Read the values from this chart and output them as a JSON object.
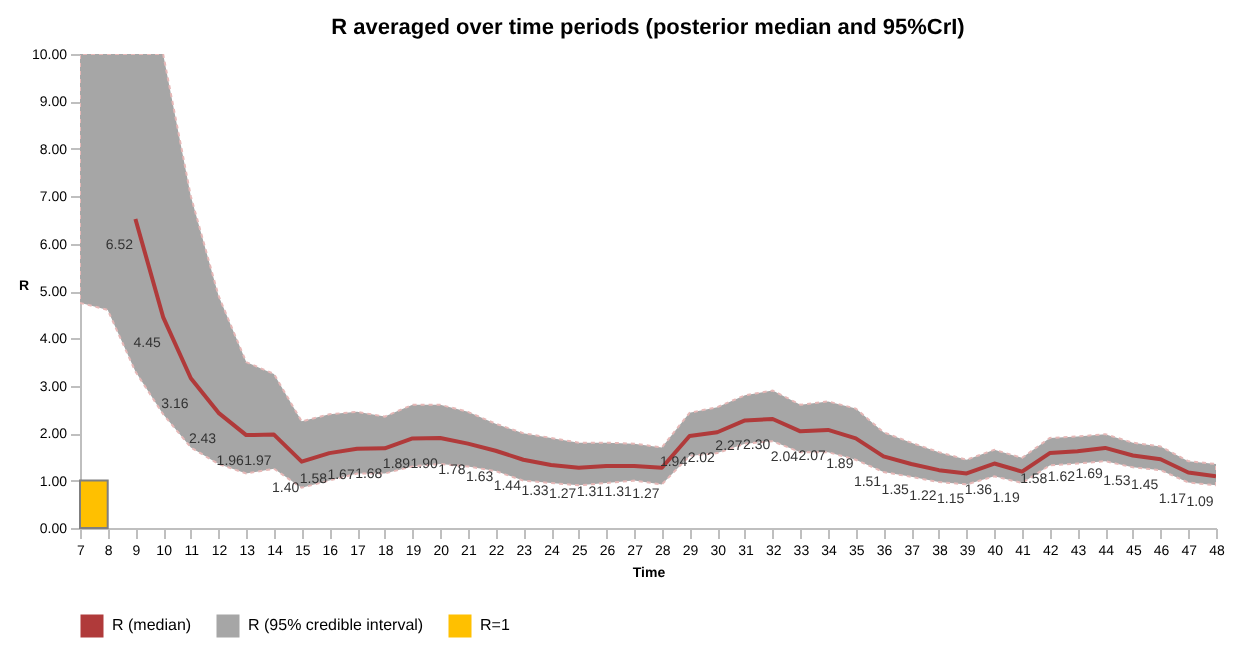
{
  "chart_data": {
    "type": "line",
    "title": "R averaged over time periods (posterior median and 95%CrI)",
    "xlabel": "Time",
    "ylabel": "R",
    "x": [
      7,
      8,
      9,
      10,
      11,
      12,
      13,
      14,
      15,
      16,
      17,
      18,
      19,
      20,
      21,
      22,
      23,
      24,
      25,
      26,
      27,
      28,
      29,
      30,
      31,
      32,
      33,
      34,
      35,
      36,
      37,
      38,
      39,
      40,
      41,
      42,
      43,
      44,
      45,
      46,
      47,
      48
    ],
    "xlim": [
      7,
      48
    ],
    "xticks": [
      7,
      8,
      9,
      10,
      11,
      12,
      13,
      14,
      15,
      16,
      17,
      18,
      19,
      20,
      21,
      22,
      23,
      24,
      25,
      26,
      27,
      28,
      29,
      30,
      31,
      32,
      33,
      34,
      35,
      36,
      37,
      38,
      39,
      40,
      41,
      42,
      43,
      44,
      45,
      46,
      47,
      48
    ],
    "ylim": [
      0,
      10
    ],
    "yticks": [
      {
        "value": 0,
        "label": "0.00"
      },
      {
        "value": 1,
        "label": "1.00"
      },
      {
        "value": 2,
        "label": "2.00"
      },
      {
        "value": 3,
        "label": "3.00"
      },
      {
        "value": 4,
        "label": "4.00"
      },
      {
        "value": 5,
        "label": "5.00"
      },
      {
        "value": 6,
        "label": "6.00"
      },
      {
        "value": 7,
        "label": "7.00"
      },
      {
        "value": 8,
        "label": "8.00"
      },
      {
        "value": 9,
        "label": "9.00"
      },
      {
        "value": 10,
        "label": "10.00"
      }
    ],
    "series": [
      {
        "name": "R (median)",
        "color": "#b03a3a",
        "values": [
          null,
          null,
          6.52,
          4.45,
          3.16,
          2.43,
          1.96,
          1.97,
          1.4,
          1.58,
          1.67,
          1.68,
          1.89,
          1.9,
          1.78,
          1.63,
          1.44,
          1.33,
          1.27,
          1.31,
          1.31,
          1.27,
          1.94,
          2.02,
          2.27,
          2.3,
          2.04,
          2.07,
          1.89,
          1.51,
          1.35,
          1.22,
          1.15,
          1.36,
          1.19,
          1.58,
          1.62,
          1.69,
          1.53,
          1.45,
          1.17,
          1.09
        ],
        "value_labels": [
          null,
          null,
          "6.52",
          "4.45",
          "3.16",
          "2.43",
          "1.96",
          "1.97",
          "1.40",
          "1.58",
          "1.67",
          "1.68",
          "1.89",
          "1.90",
          "1.78",
          "1.63",
          "1.44",
          "1.33",
          "1.27",
          "1.31",
          "1.31",
          "1.27",
          "1.94",
          "2.02",
          "2.27",
          "2.30",
          "2.04",
          "2.07",
          "1.89",
          "1.51",
          "1.35",
          "1.22",
          "1.15",
          "1.36",
          "1.19",
          "1.58",
          "1.62",
          "1.69",
          "1.53",
          "1.45",
          "1.17",
          "1.09"
        ]
      },
      {
        "name": "R (95% credible interval)",
        "type": "area",
        "color": "#a6a6a6",
        "values": [
          null,
          null,
          null,
          null,
          null,
          null,
          null,
          null,
          null,
          null,
          null,
          null,
          null,
          null,
          null,
          null,
          null,
          null,
          null,
          null,
          null,
          null,
          null,
          null,
          null,
          null,
          null,
          null,
          null,
          null,
          null,
          null,
          null,
          null,
          null,
          null,
          null,
          null,
          null,
          null,
          null,
          null
        ],
        "lower": [
          4.75,
          4.6,
          3.3,
          2.4,
          1.7,
          1.35,
          1.15,
          1.25,
          0.85,
          1.0,
          1.15,
          1.15,
          1.3,
          1.35,
          1.3,
          1.2,
          1.0,
          0.95,
          0.9,
          0.95,
          1.0,
          0.92,
          1.52,
          1.58,
          1.78,
          1.83,
          1.6,
          1.6,
          1.44,
          1.18,
          1.08,
          0.97,
          0.92,
          1.09,
          0.95,
          1.32,
          1.36,
          1.41,
          1.28,
          1.22,
          0.96,
          0.9
        ],
        "upper": [
          10,
          10,
          10,
          10,
          7.0,
          4.9,
          3.5,
          3.25,
          2.25,
          2.4,
          2.45,
          2.35,
          2.6,
          2.6,
          2.45,
          2.2,
          2.0,
          1.9,
          1.8,
          1.8,
          1.78,
          1.7,
          2.43,
          2.55,
          2.8,
          2.9,
          2.6,
          2.67,
          2.52,
          2.02,
          1.8,
          1.6,
          1.44,
          1.65,
          1.48,
          1.9,
          1.93,
          1.98,
          1.8,
          1.72,
          1.41,
          1.35
        ]
      },
      {
        "name": "R=1",
        "type": "bar",
        "color": "#ffc000",
        "x": [
          7.5
        ],
        "values": [
          1
        ]
      }
    ],
    "legend": "bottom"
  }
}
